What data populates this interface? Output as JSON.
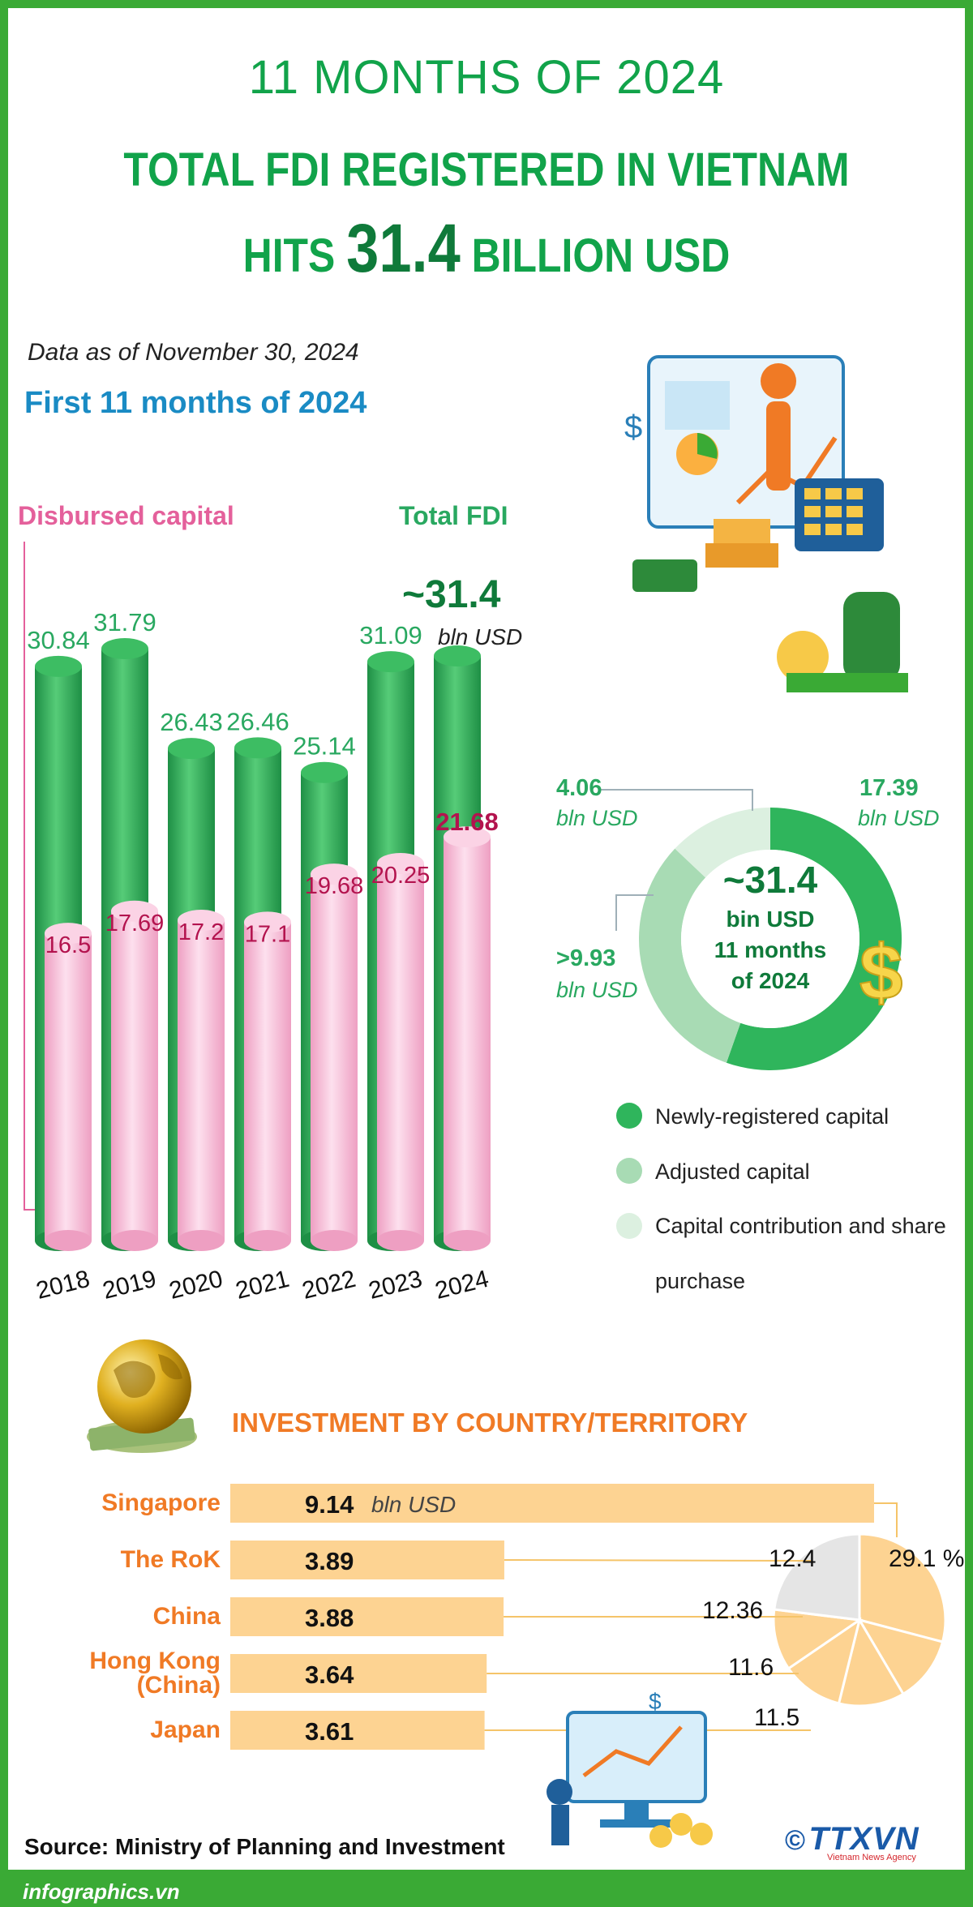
{
  "header": {
    "line1": "11 MONTHS OF 2024",
    "line2": "TOTAL FDI REGISTERED IN VIETNAM",
    "line3_pre": "HITS",
    "line3_big": "31.4",
    "line3_post": "BILLION USD"
  },
  "as_of": "Data as of November 30, 2024",
  "subtitle": "First 11 months of 2024",
  "colors": {
    "fdi_green": "#2fb55c",
    "disbursed_pink": "#f4a9cc",
    "dark_green": "#0f7a3a",
    "orange": "#f07a25",
    "bar_orange": "#fdd392"
  },
  "chart_data": [
    {
      "type": "bar",
      "categories": [
        "2018",
        "2019",
        "2020",
        "2021",
        "2022",
        "2023",
        "2024"
      ],
      "series": [
        {
          "name": "Total FDI",
          "values": [
            30.84,
            31.79,
            26.43,
            26.46,
            25.14,
            31.09,
            31.4
          ]
        },
        {
          "name": "Disbursed capital",
          "values": [
            16.5,
            17.69,
            17.2,
            17.1,
            19.68,
            20.25,
            21.68
          ]
        }
      ],
      "value_labels": {
        "fdi": [
          "30.84",
          "31.79",
          "26.43",
          "26.46",
          "25.14",
          "31.09",
          ""
        ],
        "disbursed": [
          "16.5",
          "17.69",
          "17.2",
          "17.1",
          "19.68",
          "20.25",
          "21.68"
        ]
      },
      "highlight": {
        "value": "~31.4",
        "unit": "bln USD"
      },
      "ylim": [
        0,
        32
      ]
    },
    {
      "type": "pie",
      "center_text": [
        "~31.4",
        "bin USD",
        "11 months",
        "of 2024"
      ],
      "slices": [
        {
          "name": "Newly-registered capital",
          "value": 17.39,
          "label": "17.39",
          "unit": "bln USD",
          "color": "#2fb55c"
        },
        {
          "name": "Adjusted capital",
          "value": 9.93,
          "label": ">9.93",
          "unit": "bln USD",
          "color": "#a8dbb4"
        },
        {
          "name": "Capital contribution and share purchase",
          "value": 4.06,
          "label": "4.06",
          "unit": "bln USD",
          "color": "#dcf0e0"
        }
      ],
      "legend": [
        "Newly-registered capital",
        "Adjusted capital",
        "Capital contribution and share purchase"
      ]
    },
    {
      "type": "bar",
      "title": "INVESTMENT BY COUNTRY/TERRITORY",
      "orientation": "horizontal",
      "categories": [
        "Singapore",
        "The RoK",
        "China",
        "Hong Kong (China)",
        "Japan"
      ],
      "category_lines": [
        [
          "Singapore"
        ],
        [
          "The RoK"
        ],
        [
          "China"
        ],
        [
          "Hong Kong",
          "(China)"
        ],
        [
          "Japan"
        ]
      ],
      "values": [
        9.14,
        3.89,
        3.88,
        3.64,
        3.61
      ],
      "labels": [
        "9.14",
        "3.89",
        "3.88",
        "3.64",
        "3.61"
      ],
      "unit": "bln USD",
      "share_labels": [
        "29.1 %",
        "12.4",
        "12.36",
        "11.6",
        "11.5"
      ],
      "share_values": [
        29.1,
        12.4,
        12.36,
        11.6,
        11.5
      ]
    }
  ],
  "source": "Source: Ministry of Planning and Investment",
  "site": "infographics.vn",
  "logo": {
    "copyright": "©",
    "name": "TTXVN",
    "tagline": "Vietnam News Agency"
  }
}
